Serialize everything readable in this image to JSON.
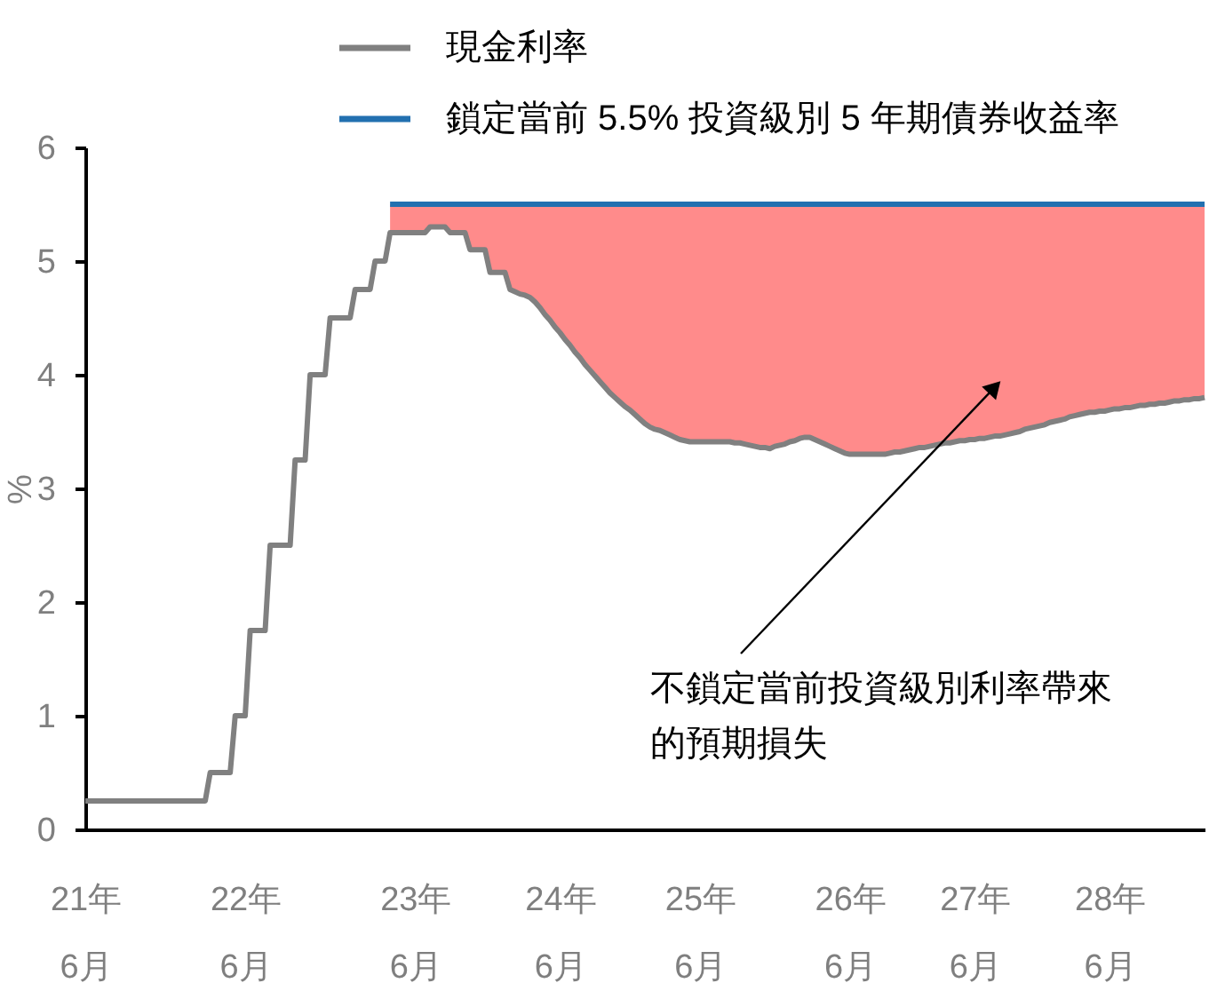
{
  "chart_data": {
    "type": "line",
    "ylabel": "%",
    "ylim": [
      0,
      6
    ],
    "yticks": [
      0,
      1,
      2,
      3,
      4,
      5,
      6
    ],
    "legend": "top",
    "categories": [
      "21年\n6月",
      null,
      null,
      null,
      null,
      null,
      null,
      null,
      null,
      null,
      null,
      null,
      null,
      null,
      null,
      null,
      null,
      null,
      null,
      null,
      null,
      null,
      null,
      null,
      null,
      null,
      null,
      null,
      null,
      null,
      null,
      null,
      "22年\n6月",
      null,
      null,
      null,
      null,
      null,
      null,
      null,
      null,
      null,
      null,
      null,
      null,
      null,
      null,
      null,
      null,
      null,
      null,
      null,
      null,
      null,
      null,
      null,
      null,
      null,
      null,
      null,
      null,
      null,
      null,
      null,
      null,
      null,
      "23年\n6月",
      null,
      null,
      null,
      null,
      null,
      null,
      null,
      null,
      null,
      null,
      null,
      null,
      null,
      null,
      null,
      null,
      null,
      null,
      null,
      null,
      null,
      null,
      null,
      null,
      null,
      null,
      null,
      null,
      "24年\n6月",
      null,
      null,
      null,
      null,
      null,
      null,
      null,
      null,
      null,
      null,
      null,
      null,
      null,
      null,
      null,
      null,
      null,
      null,
      null,
      null,
      null,
      null,
      null,
      null,
      null,
      null,
      null,
      "25年\n6月",
      null,
      null,
      null,
      null,
      null,
      null,
      null,
      null,
      null,
      null,
      null,
      null,
      null,
      null,
      null,
      null,
      null,
      null,
      null,
      null,
      null,
      null,
      null,
      null,
      null,
      null,
      null,
      null,
      null,
      "26年\n6月",
      null,
      null,
      null,
      null,
      null,
      null,
      null,
      null,
      null,
      null,
      null,
      null,
      null,
      null,
      null,
      null,
      null,
      null,
      null,
      null,
      null,
      null,
      null,
      null,
      "27年\n6月",
      null,
      null,
      null,
      null,
      null,
      null,
      null,
      null,
      null,
      null,
      null,
      null,
      null,
      null,
      null,
      null,
      null,
      null,
      null,
      null,
      null,
      null,
      null,
      null,
      null,
      null,
      "28年\n6月",
      null,
      null,
      null,
      null,
      null,
      null,
      null,
      null,
      null,
      null,
      null,
      null,
      null,
      null,
      null,
      null,
      null,
      null,
      null
    ],
    "series": [
      {
        "name": "現金利率",
        "color": "#808080",
        "values": [
          0.25,
          0.25,
          0.25,
          0.25,
          0.25,
          0.25,
          0.25,
          0.25,
          0.25,
          0.25,
          0.25,
          0.25,
          0.25,
          0.25,
          0.25,
          0.25,
          0.25,
          0.25,
          0.25,
          0.25,
          0.25,
          0.25,
          0.25,
          0.25,
          0.25,
          0.5,
          0.5,
          0.5,
          0.5,
          0.5,
          1.0,
          1.0,
          1.0,
          1.75,
          1.75,
          1.75,
          1.75,
          2.5,
          2.5,
          2.5,
          2.5,
          2.5,
          3.25,
          3.25,
          3.25,
          4.0,
          4.0,
          4.0,
          4.0,
          4.5,
          4.5,
          4.5,
          4.5,
          4.5,
          4.75,
          4.75,
          4.75,
          4.75,
          5.0,
          5.0,
          5.0,
          5.25,
          5.25,
          5.25,
          5.25,
          5.25,
          5.25,
          5.25,
          5.25,
          5.3,
          5.3,
          5.3,
          5.3,
          5.25,
          5.25,
          5.25,
          5.25,
          5.1,
          5.1,
          5.1,
          5.1,
          4.9,
          4.9,
          4.9,
          4.9,
          4.75,
          4.73,
          4.71,
          4.7,
          4.68,
          4.64,
          4.59,
          4.53,
          4.48,
          4.42,
          4.37,
          4.31,
          4.26,
          4.2,
          4.15,
          4.09,
          4.04,
          3.99,
          3.94,
          3.89,
          3.84,
          3.8,
          3.76,
          3.72,
          3.69,
          3.65,
          3.61,
          3.57,
          3.54,
          3.52,
          3.51,
          3.49,
          3.47,
          3.45,
          3.43,
          3.42,
          3.41,
          3.41,
          3.41,
          3.41,
          3.41,
          3.41,
          3.41,
          3.41,
          3.41,
          3.4,
          3.4,
          3.39,
          3.38,
          3.37,
          3.36,
          3.36,
          3.35,
          3.37,
          3.38,
          3.39,
          3.41,
          3.42,
          3.44,
          3.45,
          3.45,
          3.43,
          3.41,
          3.39,
          3.37,
          3.35,
          3.33,
          3.31,
          3.3,
          3.3,
          3.3,
          3.3,
          3.3,
          3.3,
          3.3,
          3.3,
          3.31,
          3.32,
          3.32,
          3.33,
          3.34,
          3.35,
          3.36,
          3.36,
          3.37,
          3.38,
          3.39,
          3.4,
          3.4,
          3.41,
          3.42,
          3.42,
          3.43,
          3.43,
          3.44,
          3.44,
          3.45,
          3.46,
          3.46,
          3.47,
          3.48,
          3.49,
          3.5,
          3.52,
          3.53,
          3.54,
          3.55,
          3.56,
          3.58,
          3.59,
          3.6,
          3.61,
          3.63,
          3.64,
          3.65,
          3.66,
          3.67,
          3.67,
          3.68,
          3.68,
          3.69,
          3.7,
          3.7,
          3.71,
          3.71,
          3.72,
          3.73,
          3.73,
          3.74,
          3.74,
          3.75,
          3.75,
          3.76,
          3.77,
          3.77,
          3.78,
          3.78,
          3.79,
          3.79,
          3.8
        ]
      },
      {
        "name": "鎖定當前 5.5% 投資級別 5 年期債券收益率",
        "color": "#2270b0",
        "values": [
          null,
          null,
          null,
          null,
          null,
          null,
          null,
          null,
          null,
          null,
          null,
          null,
          null,
          null,
          null,
          null,
          null,
          null,
          null,
          null,
          null,
          null,
          null,
          null,
          null,
          null,
          null,
          null,
          null,
          null,
          null,
          null,
          null,
          null,
          null,
          null,
          null,
          null,
          null,
          null,
          null,
          null,
          null,
          null,
          null,
          null,
          null,
          null,
          null,
          null,
          null,
          null,
          null,
          null,
          null,
          null,
          null,
          null,
          null,
          null,
          null,
          5.5,
          5.5,
          5.5,
          5.5,
          5.5,
          5.5,
          5.5,
          5.5,
          5.5,
          5.5,
          5.5,
          5.5,
          5.5,
          5.5,
          5.5,
          5.5,
          5.5,
          5.5,
          5.5,
          5.5,
          5.5,
          5.5,
          5.5,
          5.5,
          5.5,
          5.5,
          5.5,
          5.5,
          5.5,
          5.5,
          5.5,
          5.5,
          5.5,
          5.5,
          5.5,
          5.5,
          5.5,
          5.5,
          5.5,
          5.5,
          5.5,
          5.5,
          5.5,
          5.5,
          5.5,
          5.5,
          5.5,
          5.5,
          5.5,
          5.5,
          5.5,
          5.5,
          5.5,
          5.5,
          5.5,
          5.5,
          5.5,
          5.5,
          5.5,
          5.5,
          5.5,
          5.5,
          5.5,
          5.5,
          5.5,
          5.5,
          5.5,
          5.5,
          5.5,
          5.5,
          5.5,
          5.5,
          5.5,
          5.5,
          5.5,
          5.5,
          5.5,
          5.5,
          5.5,
          5.5,
          5.5,
          5.5,
          5.5,
          5.5,
          5.5,
          5.5,
          5.5,
          5.5,
          5.5,
          5.5,
          5.5,
          5.5,
          5.5,
          5.5,
          5.5,
          5.5,
          5.5,
          5.5,
          5.5,
          5.5,
          5.5,
          5.5,
          5.5,
          5.5,
          5.5,
          5.5,
          5.5,
          5.5,
          5.5,
          5.5,
          5.5,
          5.5,
          5.5,
          5.5,
          5.5,
          5.5,
          5.5,
          5.5,
          5.5,
          5.5,
          5.5,
          5.5,
          5.5,
          5.5,
          5.5,
          5.5,
          5.5,
          5.5,
          5.5,
          5.5,
          5.5,
          5.5,
          5.5,
          5.5,
          5.5,
          5.5,
          5.5,
          5.5,
          5.5,
          5.5,
          5.5,
          5.5,
          5.5,
          5.5,
          5.5,
          5.5,
          5.5,
          5.5,
          5.5,
          5.5,
          5.5,
          5.5,
          5.5,
          5.5,
          5.5,
          5.5,
          5.5,
          5.5,
          5.5,
          5.5,
          5.5,
          5.5,
          5.5,
          5.5
        ]
      },
      {
        "color": "#ff8b8b",
        "values": [
          null,
          null,
          null,
          null,
          null,
          null,
          null,
          null,
          null,
          null,
          null,
          null,
          null,
          null,
          null,
          null,
          null,
          null,
          null,
          null,
          null,
          null,
          null,
          null,
          null,
          null,
          null,
          null,
          null,
          null,
          null,
          null,
          null,
          null,
          null,
          null,
          null,
          null,
          null,
          null,
          null,
          null,
          null,
          null,
          null,
          null,
          null,
          null,
          null,
          null,
          null,
          null,
          null,
          null,
          null,
          null,
          null,
          null,
          null,
          null,
          null,
          null,
          null,
          null,
          null,
          null,
          null,
          null,
          null,
          null,
          null,
          null,
          null,
          null,
          null,
          null,
          null,
          null,
          null,
          null,
          null,
          null,
          null,
          null,
          null,
          null,
          null,
          null,
          null,
          null,
          null,
          null,
          null,
          null,
          null,
          null,
          null,
          null,
          null,
          null,
          null,
          null,
          null,
          null,
          null,
          null,
          null,
          null,
          null,
          null,
          null,
          null,
          null,
          null,
          null,
          null,
          null,
          null,
          null,
          null,
          null,
          null,
          null,
          null,
          null,
          null,
          null,
          null,
          null,
          null,
          null,
          null,
          null,
          null,
          null,
          null,
          null,
          null,
          null,
          null,
          null,
          null,
          null,
          null,
          null,
          null,
          null,
          null,
          null,
          null,
          null,
          null,
          null,
          null,
          null,
          null,
          null,
          null,
          null,
          null,
          null,
          null,
          null,
          null,
          null,
          null,
          null,
          null,
          null,
          null,
          null,
          null,
          null,
          null,
          null,
          null,
          null,
          null,
          null,
          null,
          null,
          null,
          null,
          null,
          null,
          null,
          null,
          null,
          null,
          null,
          null,
          null,
          null,
          null,
          null,
          null,
          null,
          null,
          null,
          null,
          null,
          null,
          null,
          null,
          null,
          null,
          null,
          null,
          null,
          null,
          null,
          null,
          null,
          null,
          null,
          null,
          null,
          null,
          null,
          null,
          null,
          null,
          null,
          null,
          null
        ],
        "lower": [
          null,
          null,
          null,
          null,
          null,
          null,
          null,
          null,
          null,
          null,
          null,
          null,
          null,
          null,
          null,
          null,
          null,
          null,
          null,
          null,
          null,
          null,
          null,
          null,
          null,
          null,
          null,
          null,
          null,
          null,
          null,
          null,
          null,
          null,
          null,
          null,
          null,
          null,
          null,
          null,
          null,
          null,
          null,
          null,
          null,
          null,
          null,
          null,
          null,
          null,
          null,
          null,
          null,
          null,
          null,
          null,
          null,
          null,
          null,
          null,
          null,
          5.25,
          5.25,
          5.25,
          5.25,
          5.25,
          5.25,
          5.25,
          5.25,
          5.3,
          5.3,
          5.3,
          5.3,
          5.25,
          5.25,
          5.25,
          5.25,
          5.1,
          5.1,
          5.1,
          5.1,
          4.9,
          4.9,
          4.9,
          4.9,
          4.75,
          4.73,
          4.71,
          4.7,
          4.68,
          4.64,
          4.59,
          4.53,
          4.48,
          4.42,
          4.37,
          4.31,
          4.26,
          4.2,
          4.15,
          4.09,
          4.04,
          3.99,
          3.94,
          3.89,
          3.84,
          3.8,
          3.76,
          3.72,
          3.69,
          3.65,
          3.61,
          3.57,
          3.54,
          3.52,
          3.51,
          3.49,
          3.47,
          3.45,
          3.43,
          3.42,
          3.41,
          3.41,
          3.41,
          3.41,
          3.41,
          3.41,
          3.41,
          3.41,
          3.41,
          3.4,
          3.4,
          3.39,
          3.38,
          3.37,
          3.36,
          3.36,
          3.35,
          3.37,
          3.38,
          3.39,
          3.41,
          3.42,
          3.44,
          3.45,
          3.45,
          3.43,
          3.41,
          3.39,
          3.37,
          3.35,
          3.33,
          3.31,
          3.3,
          3.3,
          3.3,
          3.3,
          3.3,
          3.3,
          3.3,
          3.3,
          3.31,
          3.32,
          3.32,
          3.33,
          3.34,
          3.35,
          3.36,
          3.36,
          3.37,
          3.38,
          3.39,
          3.4,
          3.4,
          3.41,
          3.42,
          3.42,
          3.43,
          3.43,
          3.44,
          3.44,
          3.45,
          3.46,
          3.46,
          3.47,
          3.48,
          3.49,
          3.5,
          3.52,
          3.53,
          3.54,
          3.55,
          3.56,
          3.58,
          3.59,
          3.6,
          3.61,
          3.63,
          3.64,
          3.65,
          3.66,
          3.67,
          3.67,
          3.68,
          3.68,
          3.69,
          3.7,
          3.7,
          3.71,
          3.71,
          3.72,
          3.73,
          3.73,
          3.74,
          3.74,
          3.75,
          3.75,
          3.76,
          3.77,
          3.77,
          3.78,
          3.78,
          3.79,
          3.79,
          3.8
        ],
        "upper": [
          null,
          null,
          null,
          null,
          null,
          null,
          null,
          null,
          null,
          null,
          null,
          null,
          null,
          null,
          null,
          null,
          null,
          null,
          null,
          null,
          null,
          null,
          null,
          null,
          null,
          null,
          null,
          null,
          null,
          null,
          null,
          null,
          null,
          null,
          null,
          null,
          null,
          null,
          null,
          null,
          null,
          null,
          null,
          null,
          null,
          null,
          null,
          null,
          null,
          null,
          null,
          null,
          null,
          null,
          null,
          null,
          null,
          null,
          null,
          null,
          null,
          5.5,
          5.5,
          5.5,
          5.5,
          5.5,
          5.5,
          5.5,
          5.5,
          5.5,
          5.5,
          5.5,
          5.5,
          5.5,
          5.5,
          5.5,
          5.5,
          5.5,
          5.5,
          5.5,
          5.5,
          5.5,
          5.5,
          5.5,
          5.5,
          5.5,
          5.5,
          5.5,
          5.5,
          5.5,
          5.5,
          5.5,
          5.5,
          5.5,
          5.5,
          5.5,
          5.5,
          5.5,
          5.5,
          5.5,
          5.5,
          5.5,
          5.5,
          5.5,
          5.5,
          5.5,
          5.5,
          5.5,
          5.5,
          5.5,
          5.5,
          5.5,
          5.5,
          5.5,
          5.5,
          5.5,
          5.5,
          5.5,
          5.5,
          5.5,
          5.5,
          5.5,
          5.5,
          5.5,
          5.5,
          5.5,
          5.5,
          5.5,
          5.5,
          5.5,
          5.5,
          5.5,
          5.5,
          5.5,
          5.5,
          5.5,
          5.5,
          5.5,
          5.5,
          5.5,
          5.5,
          5.5,
          5.5,
          5.5,
          5.5,
          5.5,
          5.5,
          5.5,
          5.5,
          5.5,
          5.5,
          5.5,
          5.5,
          5.5,
          5.5,
          5.5,
          5.5,
          5.5,
          5.5,
          5.5,
          5.5,
          5.5,
          5.5,
          5.5,
          5.5,
          5.5,
          5.5,
          5.5,
          5.5,
          5.5,
          5.5,
          5.5,
          5.5,
          5.5,
          5.5,
          5.5,
          5.5,
          5.5,
          5.5,
          5.5,
          5.5,
          5.5,
          5.5,
          5.5,
          5.5,
          5.5,
          5.5,
          5.5,
          5.5,
          5.5,
          5.5,
          5.5,
          5.5,
          5.5,
          5.5,
          5.5,
          5.5,
          5.5,
          5.5,
          5.5,
          5.5,
          5.5,
          5.5,
          5.5,
          5.5,
          5.5,
          5.5,
          5.5,
          5.5,
          5.5,
          5.5,
          5.5,
          5.5,
          5.5,
          5.5,
          5.5,
          5.5,
          5.5,
          5.5,
          5.5,
          5.5,
          5.5,
          5.5,
          5.5,
          5.5
        ]
      }
    ],
    "annotations": [
      "不鎖定當前投資級別利率帶來的預期損失"
    ]
  }
}
